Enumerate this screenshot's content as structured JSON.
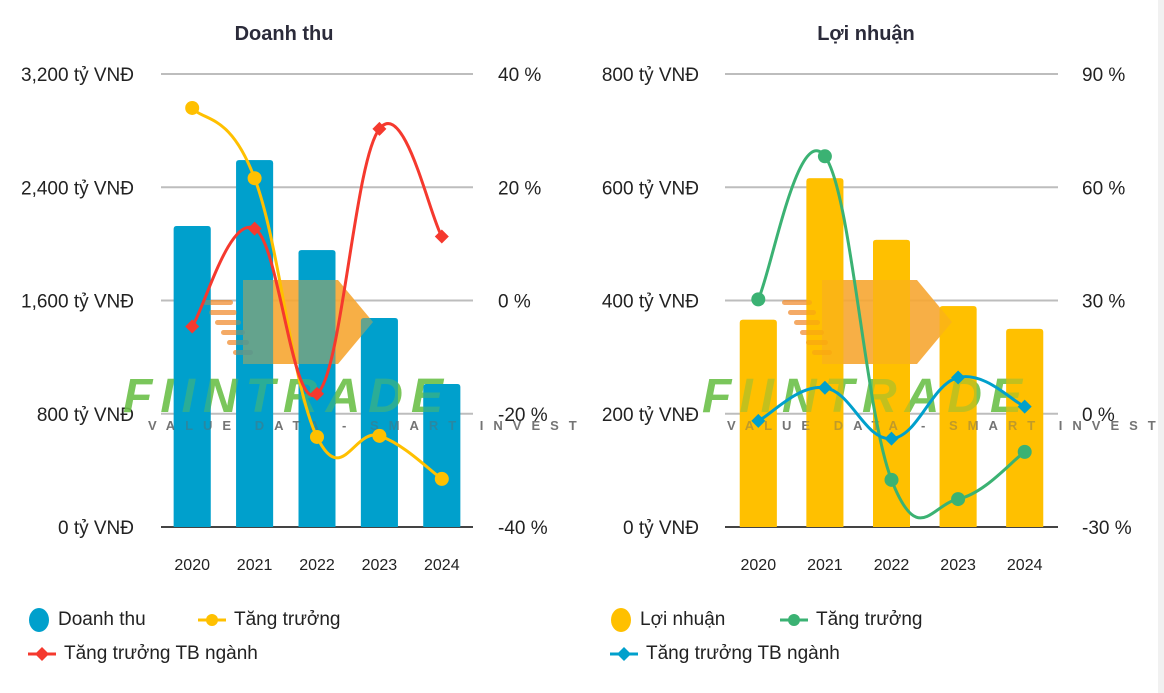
{
  "chart_data": [
    {
      "type": "bar",
      "title": "Doanh thu",
      "categories": [
        "2020",
        "2021",
        "2022",
        "2023",
        "2024"
      ],
      "y_left": {
        "ticks": [
          "0 tỷ VNĐ",
          "800 tỷ VNĐ",
          "1,600 tỷ VNĐ",
          "2,400 tỷ VNĐ",
          "3,200 tỷ VNĐ"
        ],
        "range": [
          0,
          3200
        ]
      },
      "y_right": {
        "ticks": [
          "-40 %",
          "-20 %",
          "0 %",
          "20 %",
          "40 %"
        ],
        "range": [
          -40,
          40
        ]
      },
      "grid": true,
      "legend_position": "bottom-left",
      "series": [
        {
          "name": "Doanh thu",
          "kind": "bar",
          "axis": "left",
          "color": "#00a0cc",
          "values": [
            2126,
            2592,
            1956,
            1476,
            1010
          ]
        },
        {
          "name": "Tăng trưởng",
          "kind": "line",
          "marker": "circle",
          "axis": "right",
          "color": "#ffc000",
          "values": [
            34.0,
            21.6,
            -24.1,
            -23.9,
            -31.5
          ]
        },
        {
          "name": "Tăng trưởng TB ngành",
          "kind": "line",
          "marker": "diamond",
          "axis": "right",
          "color": "#f5392e",
          "values": [
            -4.6,
            12.7,
            -16.5,
            30.3,
            11.3
          ]
        }
      ]
    },
    {
      "type": "bar",
      "title": "Lợi nhuận",
      "categories": [
        "2020",
        "2021",
        "2022",
        "2023",
        "2024"
      ],
      "y_left": {
        "ticks": [
          "0 tỷ VNĐ",
          "200 tỷ VNĐ",
          "400 tỷ VNĐ",
          "600 tỷ VNĐ",
          "800 tỷ VNĐ"
        ],
        "range": [
          0,
          800
        ]
      },
      "y_right": {
        "ticks": [
          "-30 %",
          "0 %",
          "30 %",
          "60 %",
          "90 %"
        ],
        "range": [
          -30,
          90
        ]
      },
      "grid": true,
      "legend_position": "bottom-left",
      "series": [
        {
          "name": "Lợi nhuận",
          "kind": "bar",
          "axis": "left",
          "color": "#ffc000",
          "values": [
            366,
            616,
            507,
            390,
            350
          ]
        },
        {
          "name": "Tăng trưởng",
          "kind": "line",
          "marker": "circle",
          "axis": "right",
          "color": "#3bb273",
          "values": [
            30.3,
            68.2,
            -17.5,
            -22.6,
            -10.1
          ]
        },
        {
          "name": "Tăng trưởng TB ngành",
          "kind": "line",
          "marker": "diamond",
          "axis": "right",
          "color": "#00a0cc",
          "values": [
            -1.9,
            6.9,
            -6.6,
            9.6,
            1.9
          ]
        }
      ]
    }
  ],
  "watermark": {
    "brand": "FIINTRADE",
    "tagline": "VALUE DATA - SMART INVEST"
  }
}
